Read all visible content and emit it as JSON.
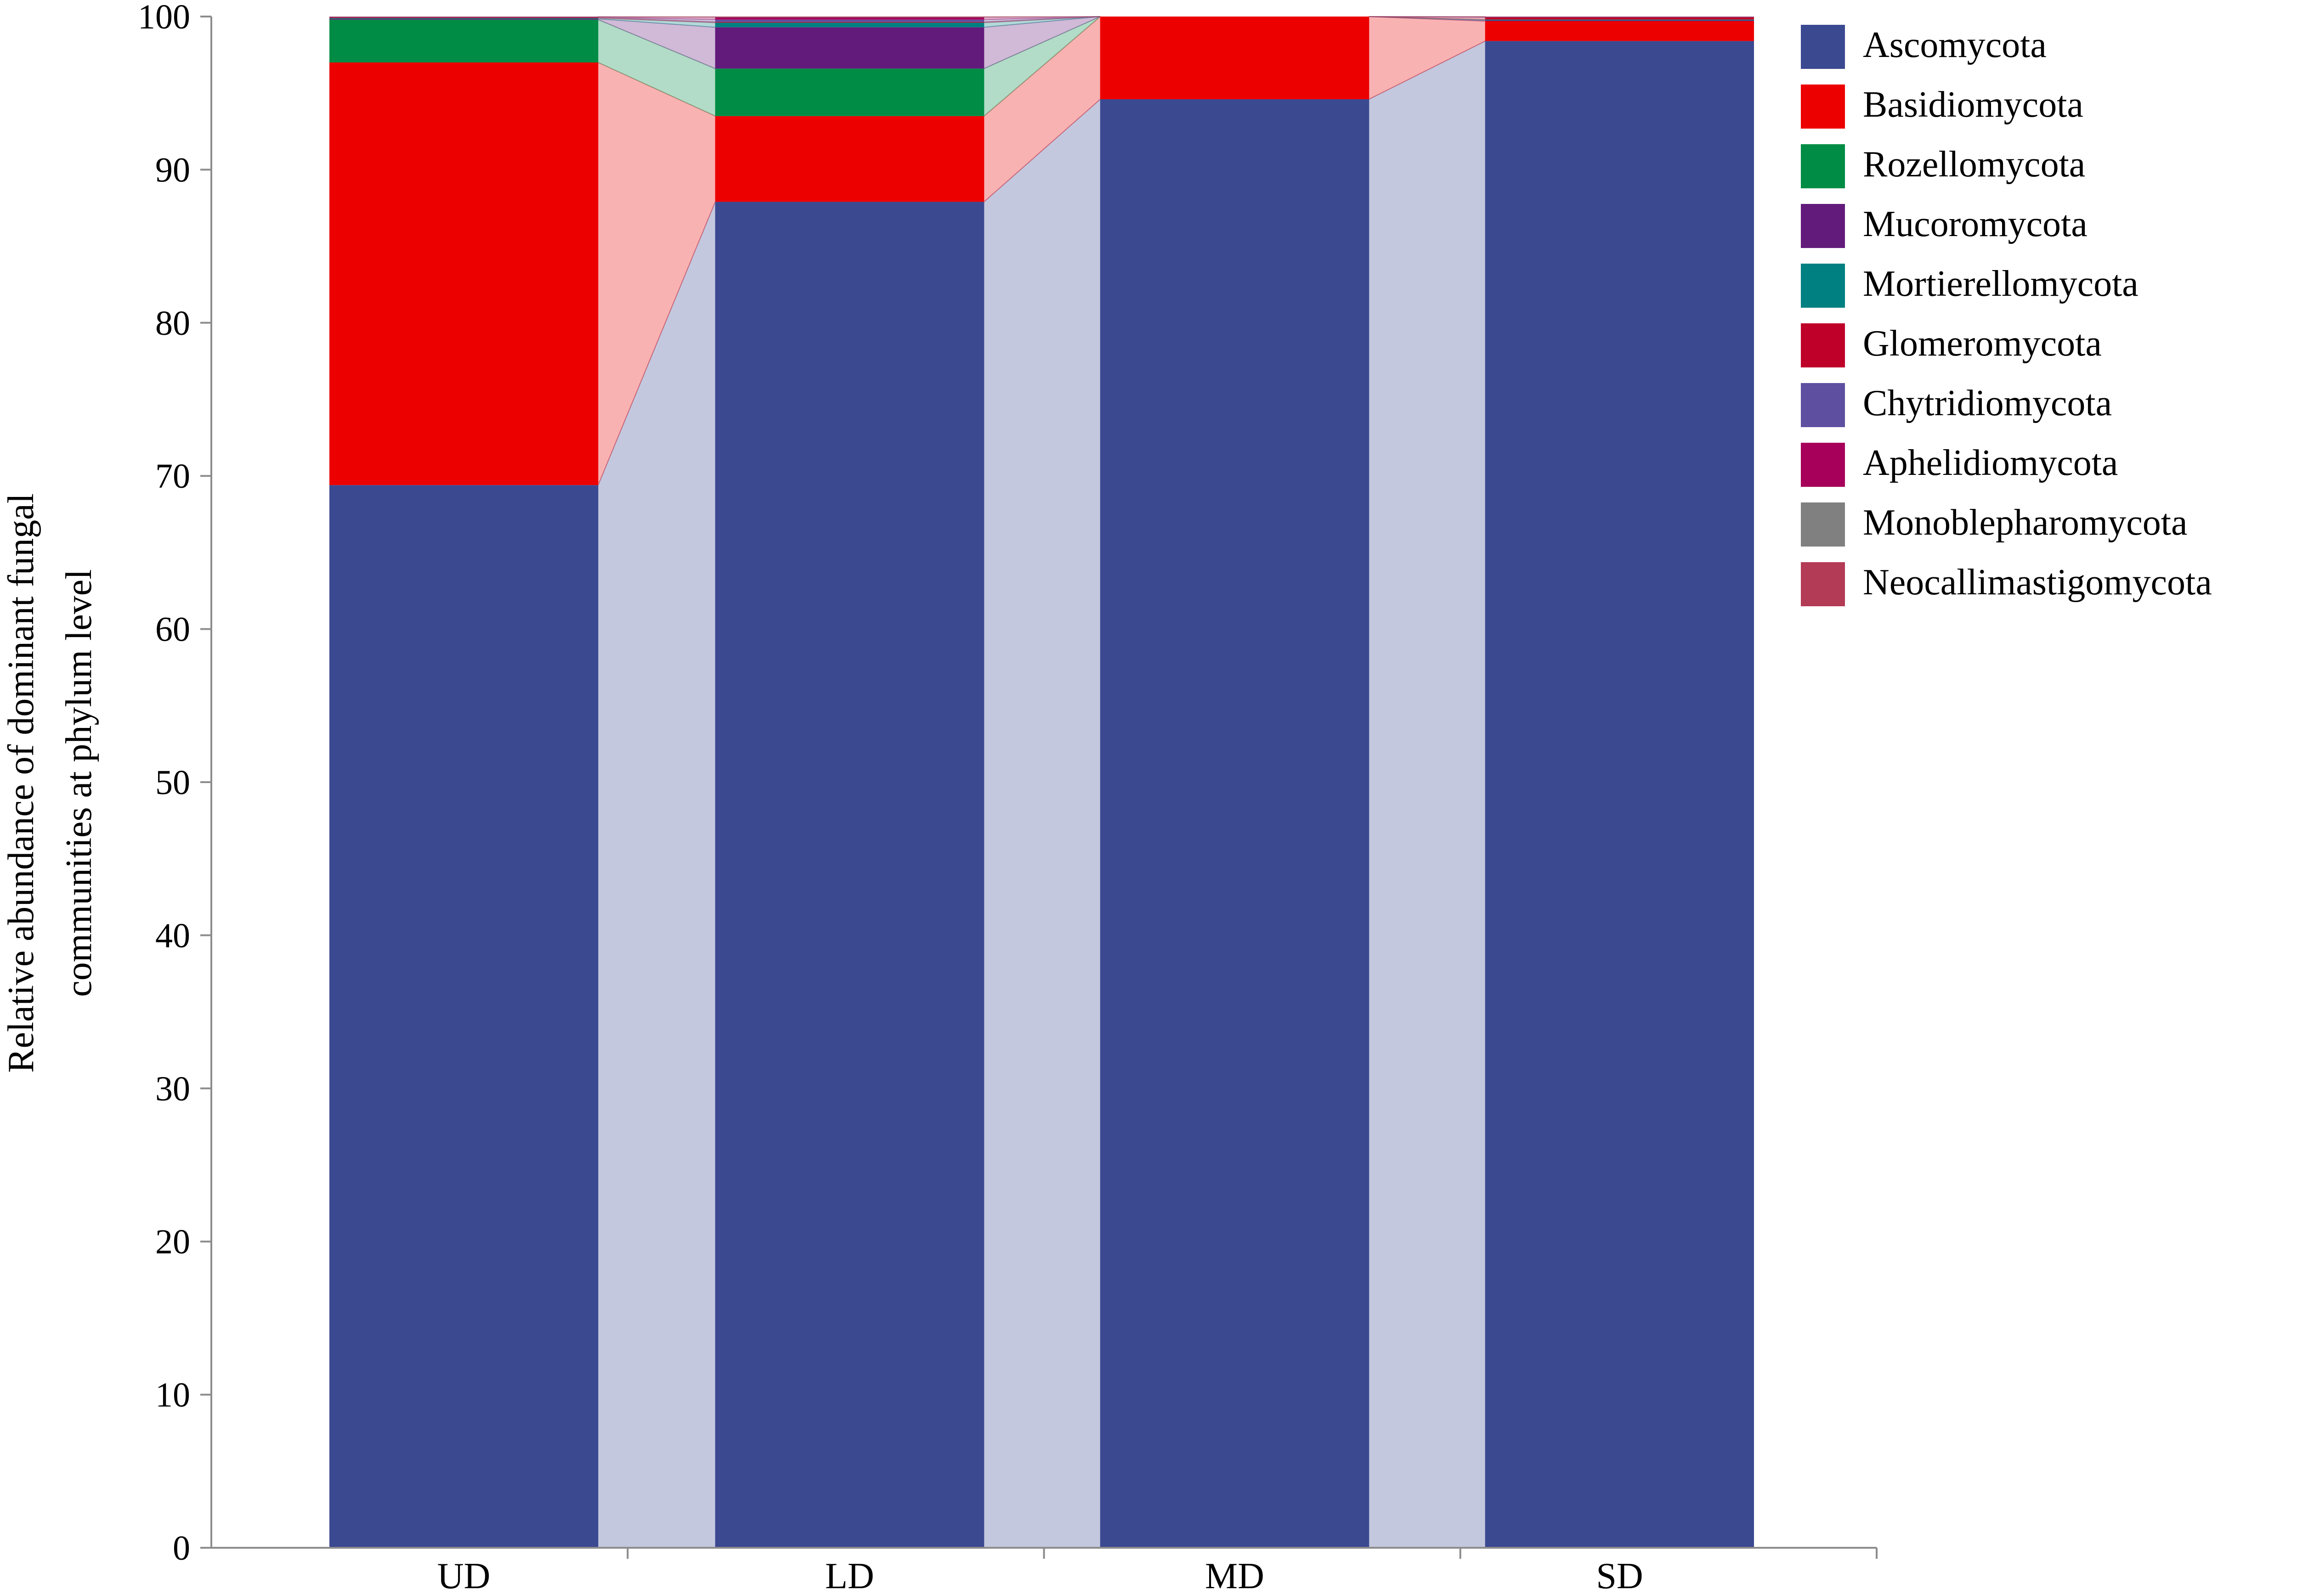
{
  "chart_data": {
    "type": "bar",
    "stacked": true,
    "connector_bands": true,
    "categories": [
      "UD",
      "LD",
      "MD",
      "SD"
    ],
    "ylabel_lines": [
      "Relative abundance of dominant fungal",
      "communities at phylum level"
    ],
    "xlabel": "",
    "ylim": [
      0,
      100
    ],
    "yticks": [
      0,
      10,
      20,
      30,
      40,
      50,
      60,
      70,
      80,
      90,
      100
    ],
    "legend_position": "right",
    "series": [
      {
        "name": "Ascomycota",
        "color": "#3b4991",
        "values": [
          69.4,
          87.9,
          94.6,
          98.4
        ]
      },
      {
        "name": "Basidiomycota",
        "color": "#ec0000",
        "values": [
          27.6,
          5.6,
          5.4,
          1.3
        ]
      },
      {
        "name": "Rozellomycota",
        "color": "#008c44",
        "values": [
          2.8,
          3.1,
          0.0,
          0.0
        ]
      },
      {
        "name": "Mucoromycota",
        "color": "#621b7b",
        "values": [
          0.05,
          2.7,
          0.0,
          0.05
        ]
      },
      {
        "name": "Mortierellomycota",
        "color": "#008080",
        "values": [
          0.05,
          0.3,
          0.0,
          0.05
        ]
      },
      {
        "name": "Glomeromycota",
        "color": "#bf0029",
        "values": [
          0.05,
          0.05,
          0.0,
          0.15
        ]
      },
      {
        "name": "Chytridiomycota",
        "color": "#5f4fa0",
        "values": [
          0.02,
          0.15,
          0.0,
          0.02
        ]
      },
      {
        "name": "Aphelidiomycota",
        "color": "#a7005b",
        "values": [
          0.01,
          0.15,
          0.0,
          0.01
        ]
      },
      {
        "name": "Monoblepharomycota",
        "color": "#808080",
        "values": [
          0.01,
          0.02,
          0.0,
          0.01
        ]
      },
      {
        "name": "Neocallimastigomycota",
        "color": "#b33b55",
        "values": [
          0.01,
          0.03,
          0.0,
          0.01
        ]
      }
    ]
  }
}
